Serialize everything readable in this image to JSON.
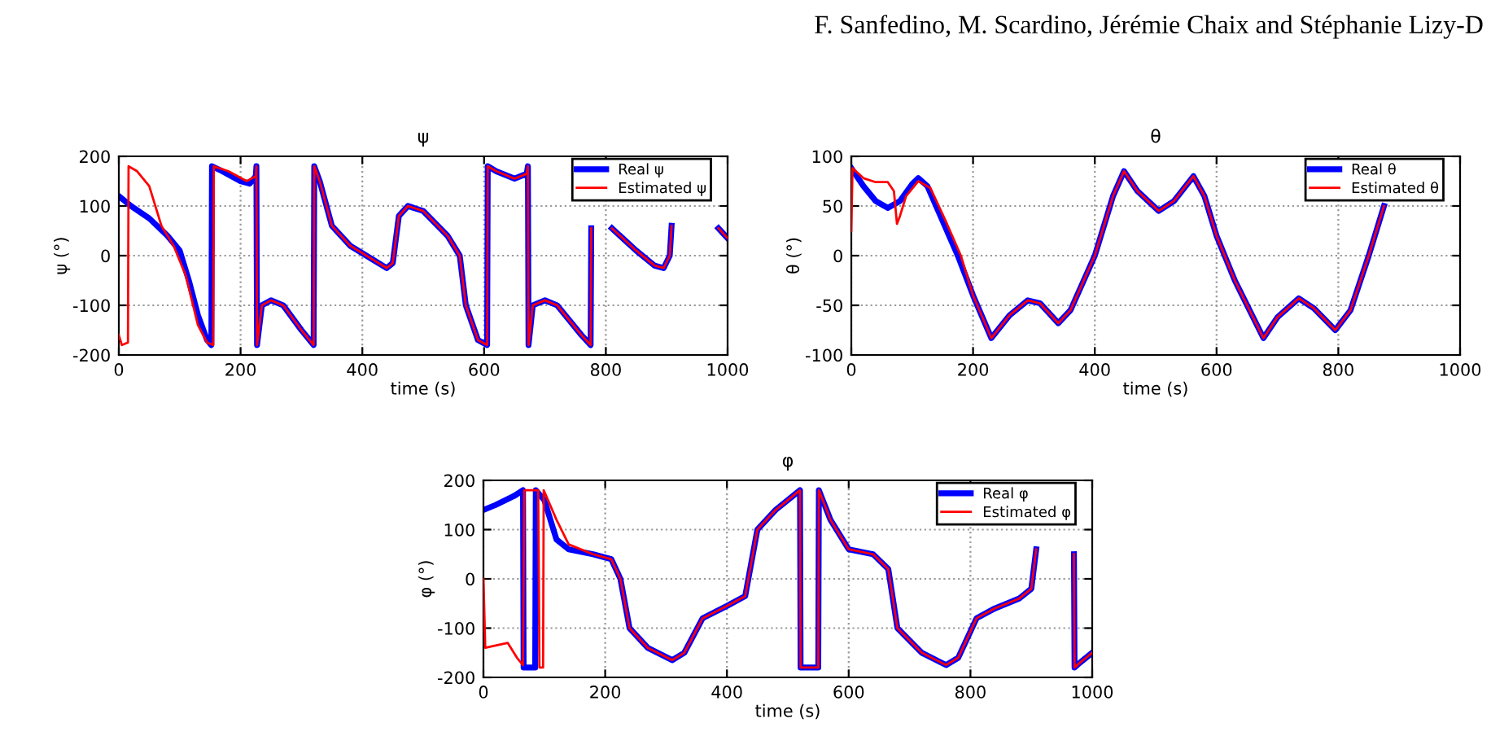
{
  "chart_data": [
    {
      "type": "line",
      "title": "ψ",
      "xlabel": "time (s)",
      "ylabel": "ψ (°)",
      "annotations": [
        "F. Sanfedino, M. Scardino, Jérémie Chaix and Stéphanie Lizy-D"
      ],
      "xlim": [
        0,
        1000
      ],
      "ylim": [
        -200,
        200
      ],
      "xticks": [
        0,
        200,
        400,
        600,
        800,
        1000
      ],
      "yticks": [
        -200,
        -100,
        0,
        100,
        200
      ],
      "grid": true,
      "legend": "top right",
      "line_style": "solid",
      "marker": "none",
      "series": [
        {
          "name": "Real ψ",
          "color": "#0000ff",
          "x": [
            0,
            20,
            50,
            80,
            100,
            115,
            130,
            145,
            152,
            153,
            170,
            200,
            215,
            225,
            226,
            227,
            235,
            250,
            270,
            300,
            320,
            321,
            330,
            350,
            380,
            420,
            440,
            450,
            460,
            475,
            500,
            540,
            560,
            570,
            590,
            605,
            606,
            620,
            650,
            670,
            672,
            673,
            680,
            700,
            720,
            760,
            775,
            776,
            777,
            810,
            850,
            880,
            895,
            905,
            908,
            909,
            985,
            1000
          ],
          "values": [
            120,
            100,
            75,
            40,
            10,
            -50,
            -120,
            -170,
            -180,
            180,
            170,
            150,
            145,
            160,
            180,
            -180,
            -100,
            -90,
            -100,
            -150,
            -180,
            180,
            150,
            60,
            20,
            -10,
            -25,
            -15,
            80,
            100,
            90,
            40,
            0,
            -100,
            -170,
            -180,
            180,
            170,
            155,
            165,
            180,
            -180,
            -100,
            -90,
            -100,
            -160,
            -180,
            55,
            null,
            55,
            10,
            -20,
            -25,
            0,
            60,
            null,
            55,
            35
          ]
        },
        {
          "name": "Estimated ψ",
          "color": "#ff0000",
          "x": [
            0,
            5,
            15,
            16,
            30,
            50,
            70,
            90,
            110,
            130,
            145,
            155,
            156,
            180,
            210,
            225,
            226,
            227,
            235,
            250,
            270,
            300,
            320,
            321,
            330,
            350,
            380,
            420,
            440,
            450,
            460,
            475,
            500,
            540,
            560,
            570,
            590,
            605,
            606,
            620,
            650,
            670,
            672,
            673,
            680,
            700,
            720,
            760,
            775,
            776,
            777,
            810,
            850,
            880,
            895,
            905,
            908,
            909,
            985,
            1000
          ],
          "values": [
            -160,
            -180,
            -175,
            180,
            170,
            140,
            60,
            20,
            -40,
            -140,
            -175,
            -180,
            180,
            170,
            150,
            160,
            180,
            -180,
            -100,
            -90,
            -100,
            -150,
            -180,
            180,
            150,
            60,
            20,
            -10,
            -25,
            -15,
            80,
            100,
            90,
            40,
            0,
            -100,
            -170,
            -180,
            180,
            170,
            155,
            165,
            180,
            -180,
            -100,
            -90,
            -100,
            -160,
            -180,
            55,
            null,
            55,
            10,
            -20,
            -25,
            0,
            60,
            null,
            55,
            35
          ]
        }
      ]
    },
    {
      "type": "line",
      "title": "θ",
      "xlabel": "time (s)",
      "ylabel": "θ (°)",
      "xlim": [
        0,
        1000
      ],
      "ylim": [
        -100,
        100
      ],
      "xticks": [
        0,
        200,
        400,
        600,
        800,
        1000
      ],
      "yticks": [
        -100,
        -50,
        0,
        50,
        100
      ],
      "grid": true,
      "legend": "top right",
      "line_style": "solid",
      "marker": "none",
      "series": [
        {
          "name": "Real θ",
          "color": "#0000ff",
          "x": [
            0,
            20,
            40,
            60,
            80,
            100,
            110,
            125,
            150,
            175,
            200,
            230,
            260,
            290,
            310,
            340,
            360,
            400,
            430,
            448,
            470,
            505,
            530,
            562,
            580,
            600,
            630,
            677,
            700,
            735,
            760,
            795,
            820,
            850,
            875
          ],
          "values": [
            88,
            70,
            55,
            48,
            55,
            72,
            78,
            70,
            35,
            0,
            -40,
            -83,
            -60,
            -45,
            -48,
            -68,
            -55,
            0,
            60,
            85,
            65,
            45,
            55,
            80,
            60,
            20,
            -25,
            -83,
            -62,
            -43,
            -53,
            -75,
            -55,
            0,
            50
          ]
        },
        {
          "name": "Estimated θ",
          "color": "#ff0000",
          "x": [
            0,
            2,
            20,
            40,
            60,
            70,
            75,
            80,
            90,
            110,
            130,
            155,
            180,
            200,
            230,
            260,
            290,
            310,
            340,
            360,
            400,
            430,
            448,
            470,
            505,
            530,
            562,
            580,
            600,
            630,
            677,
            700,
            735,
            760,
            795,
            820,
            850,
            875
          ],
          "values": [
            25,
            88,
            78,
            74,
            74,
            65,
            32,
            40,
            60,
            75,
            68,
            35,
            0,
            -40,
            -83,
            -60,
            -45,
            -48,
            -68,
            -55,
            0,
            60,
            85,
            65,
            45,
            55,
            80,
            60,
            20,
            -25,
            -83,
            -62,
            -43,
            -53,
            -75,
            -55,
            0,
            50
          ]
        }
      ]
    },
    {
      "type": "line",
      "title": "φ",
      "xlabel": "time (s)",
      "ylabel": "φ (°)",
      "xlim": [
        0,
        1000
      ],
      "ylim": [
        -200,
        200
      ],
      "xticks": [
        0,
        200,
        400,
        600,
        800,
        1000
      ],
      "yticks": [
        -200,
        -100,
        0,
        100,
        200
      ],
      "grid": true,
      "legend": "top right",
      "line_style": "solid",
      "marker": "none",
      "series": [
        {
          "name": "Real φ",
          "color": "#0000ff",
          "x": [
            0,
            20,
            50,
            65,
            66,
            85,
            86,
            100,
            120,
            140,
            180,
            210,
            225,
            240,
            270,
            310,
            330,
            360,
            400,
            430,
            450,
            480,
            520,
            521,
            550,
            551,
            570,
            600,
            640,
            665,
            680,
            720,
            760,
            780,
            810,
            840,
            880,
            900,
            908,
            909,
            970,
            971,
            980,
            1000
          ],
          "values": [
            140,
            150,
            168,
            180,
            -180,
            -180,
            180,
            160,
            80,
            60,
            50,
            40,
            0,
            -100,
            -140,
            -165,
            -150,
            -80,
            -55,
            -35,
            100,
            140,
            180,
            -180,
            -180,
            180,
            120,
            60,
            50,
            20,
            -100,
            -150,
            -175,
            -160,
            -80,
            -60,
            -40,
            -20,
            60,
            null,
            50,
            -180,
            -170,
            -150
          ]
        },
        {
          "name": "Estimated φ",
          "color": "#ff0000",
          "x": [
            0,
            3,
            40,
            55,
            65,
            67,
            90,
            92,
            98,
            99,
            120,
            140,
            180,
            210,
            225,
            240,
            270,
            310,
            330,
            360,
            400,
            430,
            450,
            480,
            520,
            521,
            550,
            551,
            570,
            600,
            640,
            665,
            680,
            720,
            760,
            780,
            810,
            840,
            880,
            900,
            908,
            909,
            970,
            971,
            980,
            1000
          ],
          "values": [
            0,
            -140,
            -130,
            -160,
            -175,
            180,
            180,
            -180,
            -180,
            180,
            120,
            70,
            50,
            40,
            0,
            -100,
            -140,
            -165,
            -150,
            -80,
            -55,
            -35,
            100,
            140,
            180,
            -180,
            -180,
            180,
            120,
            60,
            50,
            20,
            -100,
            -150,
            -175,
            -160,
            -80,
            -60,
            -40,
            -20,
            60,
            null,
            50,
            -180,
            -170,
            -150
          ]
        }
      ]
    }
  ]
}
